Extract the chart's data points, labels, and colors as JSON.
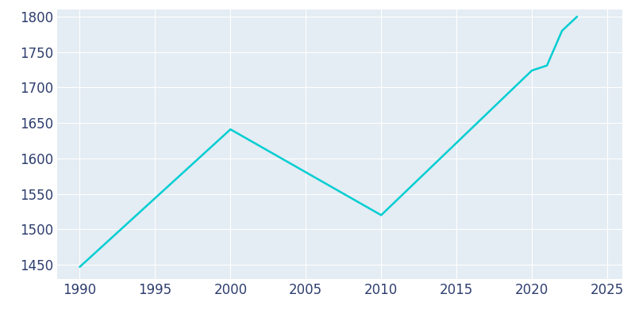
{
  "years": [
    1990,
    2000,
    2010,
    2020,
    2021,
    2022,
    2023
  ],
  "population": [
    1447,
    1641,
    1520,
    1724,
    1731,
    1780,
    1800
  ],
  "line_color": "#00CED1",
  "axes_bg_color": "#E4ECF4",
  "fig_bg_color": "#FFFFFF",
  "line_width": 1.8,
  "ylim": [
    1430,
    1810
  ],
  "xlim": [
    1988.5,
    2026
  ],
  "yticks": [
    1450,
    1500,
    1550,
    1600,
    1650,
    1700,
    1750,
    1800
  ],
  "xticks": [
    1990,
    1995,
    2000,
    2005,
    2010,
    2015,
    2020,
    2025
  ],
  "grid_color": "#FFFFFF",
  "grid_linewidth": 0.8,
  "tick_label_color": "#2E3E6E",
  "tick_fontsize": 12
}
